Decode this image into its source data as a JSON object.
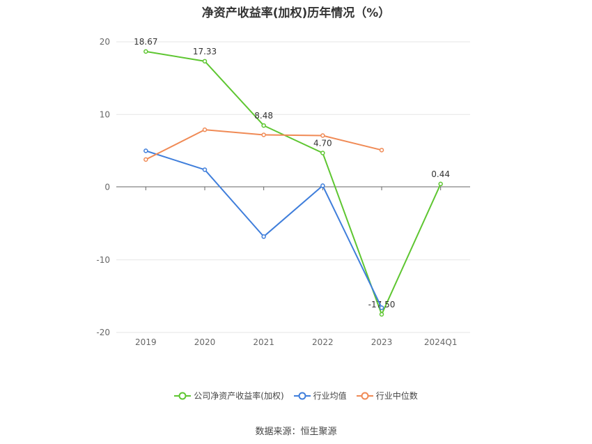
{
  "chart_data": {
    "type": "line",
    "title": "净资产收益率(加权)历年情况（%）",
    "categories": [
      "2019",
      "2020",
      "2021",
      "2022",
      "2023",
      "2024Q1"
    ],
    "ylim": [
      -20,
      20
    ],
    "yticks": [
      "20",
      "10",
      "0",
      "-10",
      "-20"
    ],
    "grid": true,
    "legend_position": "bottom",
    "series": [
      {
        "name": "公司净资产收益率(加权)",
        "color": "#5ec631",
        "values": [
          18.67,
          17.33,
          8.48,
          4.7,
          -17.5,
          0.44
        ],
        "labels": [
          "18.67",
          "17.33",
          "8.48",
          "4.70",
          "-17.50",
          "0.44"
        ]
      },
      {
        "name": "行业均值",
        "color": "#3f7edb",
        "values": [
          5.0,
          2.4,
          -6.8,
          0.2,
          -16.6,
          null
        ]
      },
      {
        "name": "行业中位数",
        "color": "#f08a55",
        "values": [
          3.8,
          7.9,
          7.2,
          7.1,
          5.1,
          null
        ]
      }
    ]
  },
  "source": "数据来源：恒生聚源"
}
